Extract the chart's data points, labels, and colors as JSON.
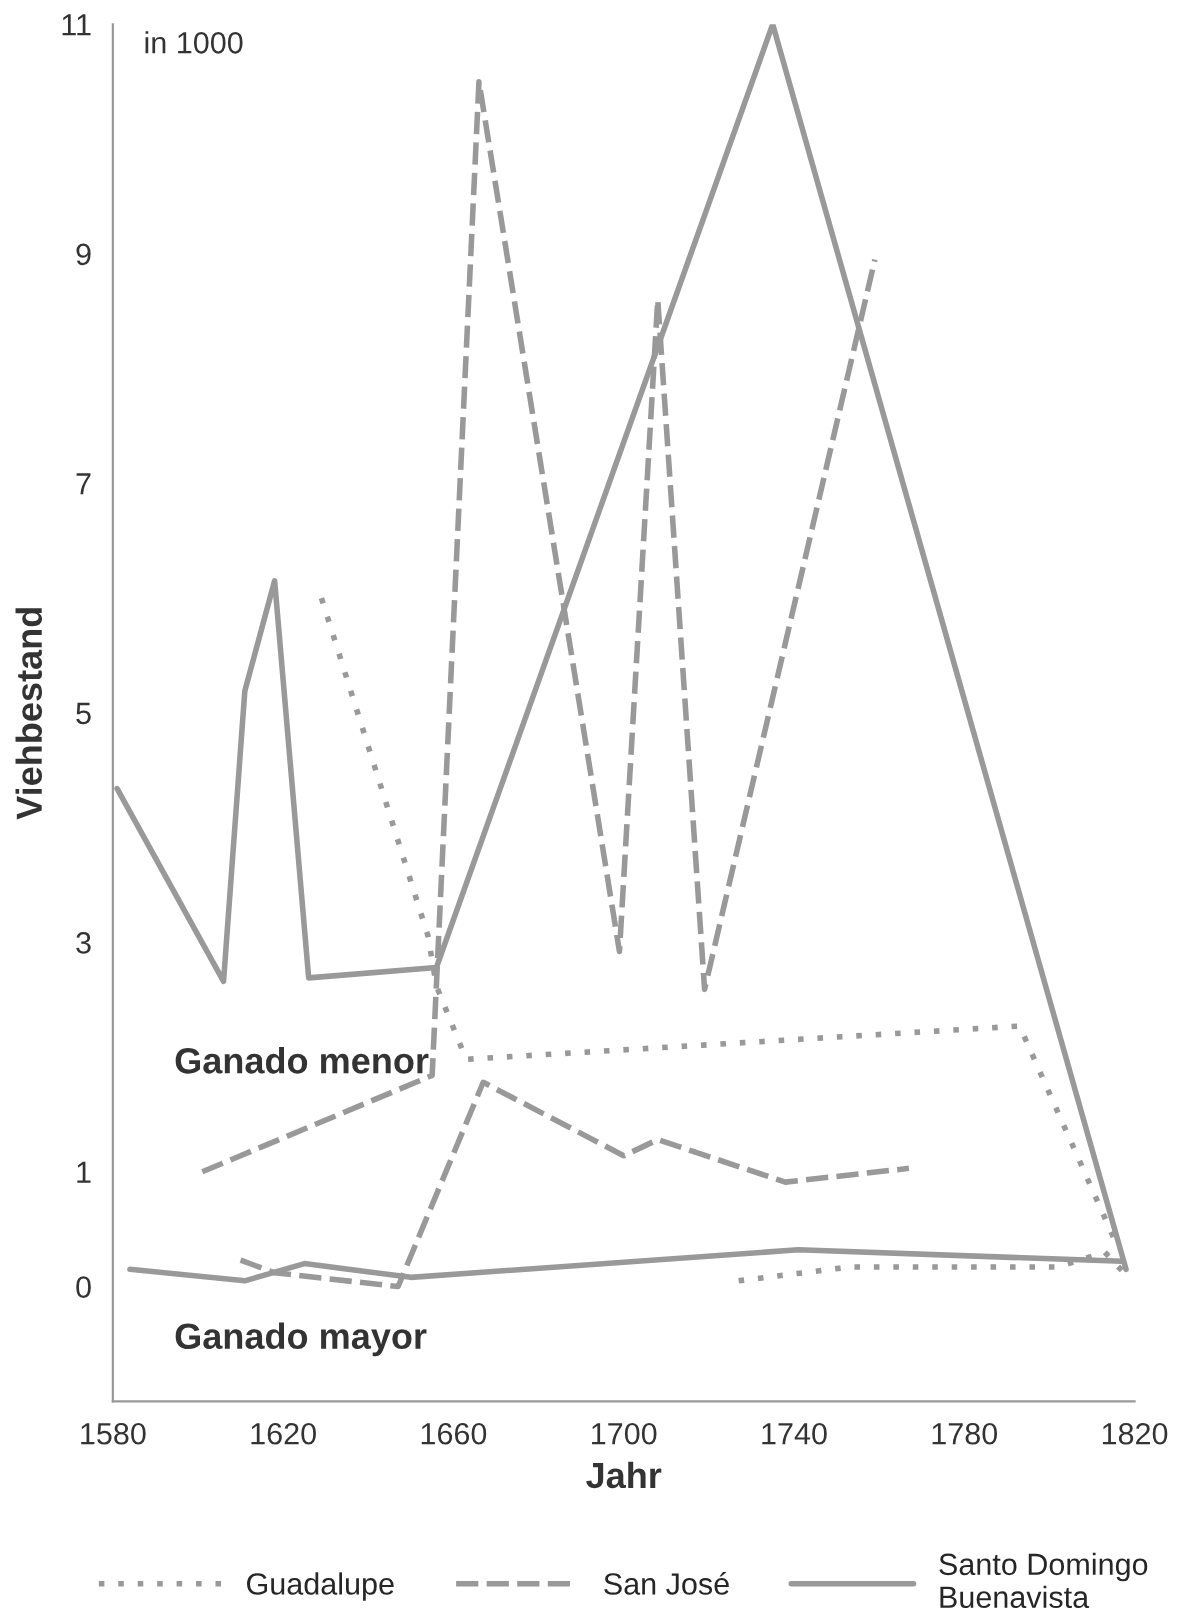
{
  "chart_data": {
    "type": "line",
    "xlabel": "Jahr",
    "ylabel": "Viehbestand",
    "annotations": [
      "in 1000",
      "Ganado menor",
      "Ganado mayor"
    ],
    "xlim": [
      1580,
      1820
    ],
    "xticks": [
      1580,
      1620,
      1660,
      1700,
      1740,
      1780,
      1820
    ],
    "ylim": [
      -1,
      11
    ],
    "yticks": [
      0,
      1,
      3,
      5,
      7,
      9,
      11
    ],
    "grid": false,
    "legend": "bottom",
    "marker": "none",
    "series": [
      {
        "name": "Guadalupe",
        "color": "#999999",
        "line_style": "dotted",
        "x": [
          1629,
          1654,
          1656,
          1663,
          1793,
          1816
        ],
        "values": [
          6.0,
          3.06,
          2.62,
          1.98,
          2.27,
          0.35
        ]
      },
      {
        "name": "San José",
        "color": "#999999",
        "line_style": "dashed",
        "x": [
          1601,
          1655,
          1666,
          1699,
          1708,
          1719,
          1759
        ],
        "values": [
          1.0,
          1.84,
          10.5,
          2.92,
          8.6,
          2.59,
          8.95
        ]
      },
      {
        "name": "Santo Domingo\nBuenavista",
        "color": "#999999",
        "line_style": "solid",
        "x": [
          1581,
          1606,
          1611,
          1618,
          1626,
          1656,
          1735,
          1818
        ],
        "values": [
          4.34,
          2.66,
          5.19,
          6.15,
          2.69,
          2.78,
          11.0,
          0.15
        ]
      },
      {
        "color": "#999999",
        "line_style": "dotted",
        "x": [
          1727,
          1753,
          1802,
          1813,
          1817
        ],
        "values": [
          0.05,
          0.17,
          0.17,
          0.3,
          0.14
        ]
      },
      {
        "color": "#999999",
        "line_style": "dashed",
        "x": [
          1610,
          1618,
          1647,
          1667,
          1700,
          1708,
          1738,
          1767
        ],
        "values": [
          0.23,
          0.12,
          0.0,
          1.78,
          1.14,
          1.28,
          0.91,
          1.03
        ]
      },
      {
        "color": "#999999",
        "line_style": "solid",
        "x": [
          1584,
          1611,
          1625,
          1650,
          1741,
          1817
        ],
        "values": [
          0.15,
          0.05,
          0.2,
          0.08,
          0.32,
          0.22
        ]
      }
    ]
  }
}
